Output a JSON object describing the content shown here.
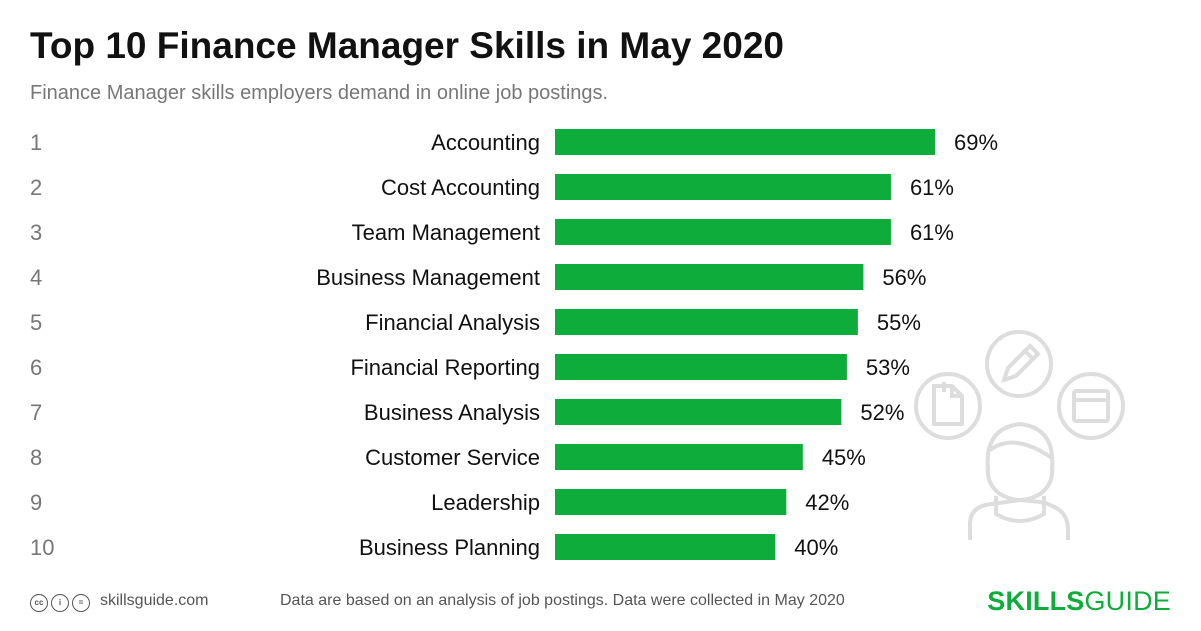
{
  "header": {
    "title": "Top 10 Finance Manager Skills in May 2020",
    "subtitle": "Finance Manager skills employers demand in online job postings."
  },
  "chart_data": {
    "type": "bar",
    "orientation": "horizontal",
    "ranks": [
      "1",
      "2",
      "3",
      "4",
      "5",
      "6",
      "7",
      "8",
      "9",
      "10"
    ],
    "categories": [
      "Accounting",
      "Cost Accounting",
      "Team Management",
      "Business Management",
      "Financial Analysis",
      "Financial Reporting",
      "Business Analysis",
      "Customer Service",
      "Leadership",
      "Business Planning"
    ],
    "values": [
      69,
      61,
      61,
      56,
      55,
      53,
      52,
      45,
      42,
      40
    ],
    "value_labels": [
      "69%",
      "61%",
      "61%",
      "56%",
      "55%",
      "53%",
      "52%",
      "45%",
      "42%",
      "40%"
    ],
    "bar_color": "#0ead3b",
    "grid": false,
    "legend": "none"
  },
  "footer": {
    "license_icons": [
      "cc-icon",
      "by-person-icon",
      "nd-equals-icon"
    ],
    "license_glyphs": [
      "cc",
      "i",
      "="
    ],
    "site": "skillsguide.com",
    "note": "Data are based on an analysis of job postings. Data were collected in May 2020",
    "brand_bold": "SKILLS",
    "brand_regular": "GUIDE",
    "brand_color": "#0ead3b"
  },
  "illustration": {
    "icons": [
      "person-icon",
      "pencil-icon",
      "browser-window-icon",
      "document-icon"
    ],
    "stroke_color": "#dddddd"
  }
}
